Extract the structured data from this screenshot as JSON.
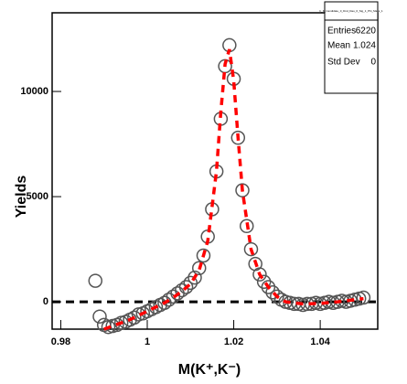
{
  "chart_data": {
    "type": "scatter",
    "x_label": "M(K⁺,K⁻)",
    "y_label": "Yields",
    "xlim": [
      0.978,
      1.0533
    ],
    "ylim": [
      -1300,
      13740
    ],
    "xticks": [
      0.98,
      1,
      1.02,
      1.04
    ],
    "yticks": [
      0,
      5000,
      10000
    ],
    "reference_line": 0,
    "series": [
      {
        "name": "data",
        "kind": "markers",
        "color": "#555555",
        "x": [
          0.988,
          0.989,
          0.99,
          0.991,
          0.992,
          0.993,
          0.994,
          0.995,
          0.996,
          0.997,
          0.998,
          0.999,
          1.0,
          1.001,
          1.002,
          1.003,
          1.004,
          1.005,
          1.006,
          1.007,
          1.008,
          1.009,
          1.01,
          1.011,
          1.012,
          1.013,
          1.014,
          1.015,
          1.016,
          1.017,
          1.018,
          1.019,
          1.02,
          1.021,
          1.022,
          1.023,
          1.024,
          1.025,
          1.026,
          1.027,
          1.028,
          1.029,
          1.03,
          1.031,
          1.032,
          1.033,
          1.034,
          1.035,
          1.036,
          1.037,
          1.038,
          1.039,
          1.04,
          1.041,
          1.042,
          1.043,
          1.044,
          1.045,
          1.046,
          1.047,
          1.048,
          1.049,
          1.05
        ],
        "values": [
          1000,
          -700,
          -1100,
          -1200,
          -1150,
          -1100,
          -1000,
          -950,
          -850,
          -750,
          -600,
          -550,
          -450,
          -350,
          -250,
          -150,
          -50,
          100,
          250,
          400,
          550,
          700,
          900,
          1150,
          1600,
          2200,
          3100,
          4400,
          6200,
          8700,
          11200,
          12200,
          10600,
          7800,
          5300,
          3600,
          2500,
          1800,
          1300,
          950,
          700,
          450,
          250,
          100,
          0,
          -50,
          -100,
          -100,
          -150,
          -100,
          -100,
          -50,
          -100,
          -50,
          0,
          -50,
          0,
          50,
          0,
          50,
          100,
          150,
          200
        ]
      },
      {
        "name": "fit",
        "kind": "line",
        "color": "#ff0000",
        "x": [
          0.99,
          0.992,
          0.994,
          0.996,
          0.998,
          1.0,
          1.002,
          1.004,
          1.006,
          1.008,
          1.01,
          1.012,
          1.014,
          1.016,
          1.017,
          1.018,
          1.019,
          1.02,
          1.021,
          1.022,
          1.024,
          1.026,
          1.028,
          1.03,
          1.032,
          1.036,
          1.04,
          1.044,
          1.048,
          1.05
        ],
        "values": [
          -1300,
          -1150,
          -1000,
          -850,
          -650,
          -450,
          -250,
          -50,
          200,
          500,
          850,
          1500,
          2900,
          6200,
          9000,
          11300,
          12000,
          10500,
          7800,
          5300,
          2500,
          1300,
          700,
          250,
          0,
          -100,
          -80,
          0,
          100,
          150
        ]
      }
    ],
    "stats": {
      "title": "h_K_Candidate_0_Dnd_Dau_0_Sig_1_Phi_Mass_1",
      "rows": [
        [
          "Entries",
          "6220"
        ],
        [
          "Mean",
          "1.024"
        ],
        [
          "Std Dev",
          "0"
        ]
      ]
    }
  }
}
